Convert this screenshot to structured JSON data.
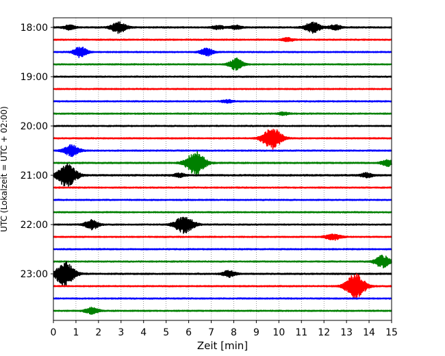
{
  "chart_data": {
    "type": "line",
    "title": "",
    "xlabel": "Zeit  [min]",
    "ylabel": "UTC (Lokalzeit = UTC + 02:00)",
    "xlim": [
      0,
      15
    ],
    "x_ticks": [
      "0",
      "1",
      "2",
      "3",
      "4",
      "5",
      "6",
      "7",
      "8",
      "9",
      "10",
      "11",
      "12",
      "13",
      "14",
      "15"
    ],
    "y_ticks": [
      "18:00",
      "19:00",
      "20:00",
      "21:00",
      "22:00",
      "23:00"
    ],
    "grid": {
      "vertical": true,
      "style": "dotted"
    },
    "trace_colors": [
      "#000000",
      "#ff0000",
      "#0000ff",
      "#008000"
    ],
    "trace_interval_min": 15,
    "start_time": "18:00",
    "series": [
      {
        "time": "18:00",
        "color": "#000000",
        "base": 0.7,
        "events": [
          [
            0.7,
            0.5,
            3
          ],
          [
            2.9,
            0.9,
            4
          ],
          [
            7.3,
            0.4,
            3
          ],
          [
            8.1,
            0.4,
            3
          ],
          [
            11.5,
            0.9,
            4
          ],
          [
            12.5,
            0.6,
            3
          ]
        ]
      },
      {
        "time": "18:15",
        "color": "#ff0000",
        "base": 0.6,
        "events": [
          [
            10.4,
            0.4,
            3
          ]
        ]
      },
      {
        "time": "18:30",
        "color": "#0000ff",
        "base": 0.6,
        "events": [
          [
            1.2,
            1.0,
            3.5
          ],
          [
            6.8,
            0.7,
            3.5
          ]
        ]
      },
      {
        "time": "18:45",
        "color": "#008000",
        "base": 0.6,
        "events": [
          [
            8.1,
            1.1,
            3.5
          ]
        ]
      },
      {
        "time": "19:00",
        "color": "#000000",
        "base": 0.6,
        "events": []
      },
      {
        "time": "19:15",
        "color": "#ff0000",
        "base": 0.6,
        "events": []
      },
      {
        "time": "19:30",
        "color": "#0000ff",
        "base": 0.6,
        "events": [
          [
            7.7,
            0.3,
            3
          ]
        ]
      },
      {
        "time": "19:45",
        "color": "#008000",
        "base": 0.6,
        "events": [
          [
            10.2,
            0.3,
            3
          ]
        ]
      },
      {
        "time": "20:00",
        "color": "#000000",
        "base": 0.6,
        "events": []
      },
      {
        "time": "20:15",
        "color": "#ff0000",
        "base": 0.6,
        "events": [
          [
            9.7,
            1.4,
            5
          ]
        ]
      },
      {
        "time": "20:30",
        "color": "#0000ff",
        "base": 0.6,
        "events": [
          [
            0.8,
            0.9,
            4
          ]
        ]
      },
      {
        "time": "20:45",
        "color": "#008000",
        "base": 0.7,
        "events": [
          [
            6.3,
            1.5,
            5
          ],
          [
            14.8,
            0.7,
            3
          ]
        ]
      },
      {
        "time": "21:00",
        "color": "#000000",
        "base": 0.8,
        "events": [
          [
            0.6,
            1.5,
            5
          ],
          [
            5.6,
            0.4,
            3
          ],
          [
            13.9,
            0.5,
            3
          ]
        ]
      },
      {
        "time": "21:15",
        "color": "#ff0000",
        "base": 0.6,
        "events": []
      },
      {
        "time": "21:30",
        "color": "#0000ff",
        "base": 0.6,
        "events": []
      },
      {
        "time": "21:45",
        "color": "#008000",
        "base": 0.6,
        "events": []
      },
      {
        "time": "22:00",
        "color": "#000000",
        "base": 0.6,
        "events": [
          [
            1.7,
            0.9,
            3.5
          ],
          [
            5.8,
            1.1,
            5
          ]
        ]
      },
      {
        "time": "22:15",
        "color": "#ff0000",
        "base": 0.6,
        "events": [
          [
            12.4,
            0.5,
            4
          ]
        ]
      },
      {
        "time": "22:30",
        "color": "#0000ff",
        "base": 0.6,
        "events": []
      },
      {
        "time": "22:45",
        "color": "#008000",
        "base": 0.6,
        "events": [
          [
            14.6,
            1.0,
            4
          ]
        ]
      },
      {
        "time": "23:00",
        "color": "#000000",
        "base": 0.7,
        "events": [
          [
            0.5,
            1.6,
            5
          ],
          [
            7.8,
            0.6,
            3.5
          ]
        ]
      },
      {
        "time": "23:15",
        "color": "#ff0000",
        "base": 0.6,
        "events": [
          [
            13.4,
            1.6,
            5
          ]
        ]
      },
      {
        "time": "23:30",
        "color": "#0000ff",
        "base": 0.6,
        "events": []
      },
      {
        "time": "23:45",
        "color": "#008000",
        "base": 0.6,
        "events": [
          [
            1.7,
            0.6,
            3.5
          ]
        ]
      }
    ]
  }
}
